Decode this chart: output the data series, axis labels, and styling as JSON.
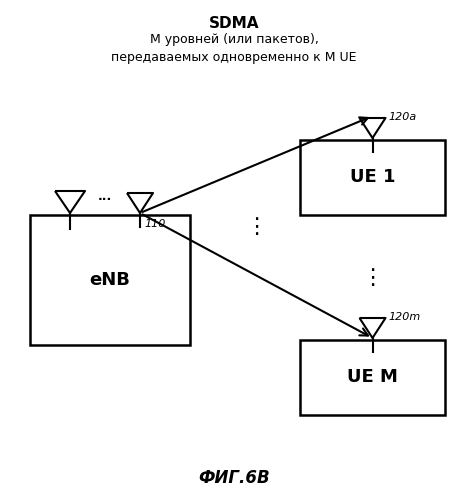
{
  "title_bold": "SDMA",
  "title_sub": "М уровней (или пакетов),\nпередаваемых одновременно к М UE",
  "caption": "ФИГ.6В",
  "enb_label": "eNB",
  "ue1_label": "UE 1",
  "uem_label": "UE M",
  "label_110": "110",
  "label_120a": "120a",
  "label_120m": "120m",
  "bg_color": "#ffffff",
  "box_color": "#ffffff",
  "box_edge": "#000000",
  "arrow_color": "#000000",
  "text_color": "#000000"
}
